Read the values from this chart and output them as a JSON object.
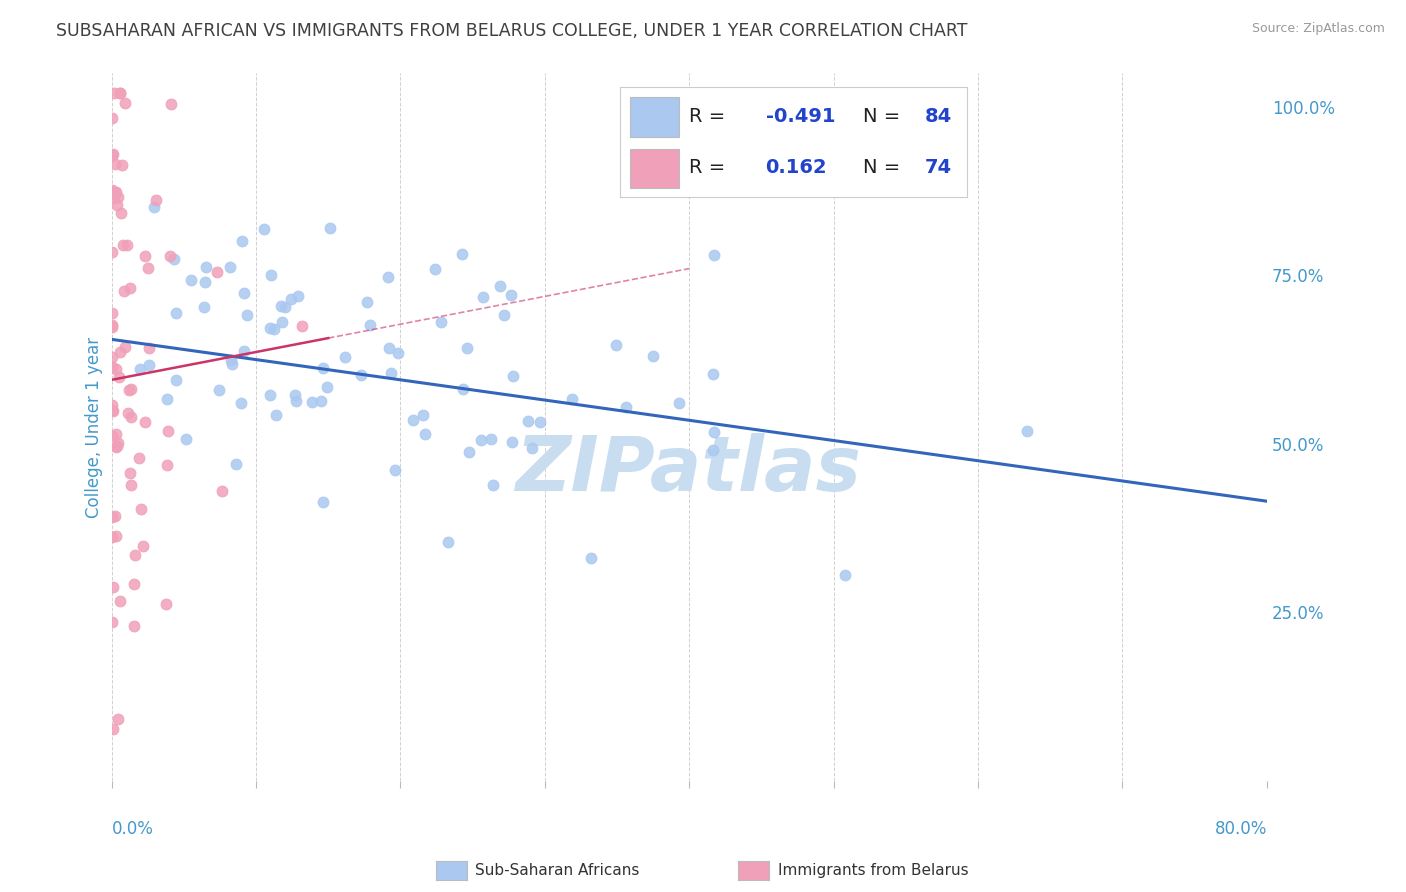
{
  "title": "SUBSAHARAN AFRICAN VS IMMIGRANTS FROM BELARUS COLLEGE, UNDER 1 YEAR CORRELATION CHART",
  "source": "Source: ZipAtlas.com",
  "ylabel": "College, Under 1 year",
  "xlim": [
    0.0,
    0.8
  ],
  "ylim": [
    0.0,
    1.05
  ],
  "blue_color": "#aac8f0",
  "pink_color": "#f0a0b8",
  "blue_line_color": "#3366bb",
  "pink_line_color": "#cc3366",
  "watermark": "ZIPatlas",
  "watermark_color": "#c8ddf0",
  "title_color": "#404040",
  "axis_color": "#4499cc",
  "grid_color": "#cccccc",
  "blue_line_start_y": 0.655,
  "blue_line_end_y": 0.415,
  "pink_line_start_x": 0.0,
  "pink_line_start_y": 0.595,
  "pink_line_end_x": 0.4,
  "pink_line_end_y": 0.76,
  "pink_line_solid_end_x": 0.15,
  "pink_line_solid_end_y": 0.658
}
